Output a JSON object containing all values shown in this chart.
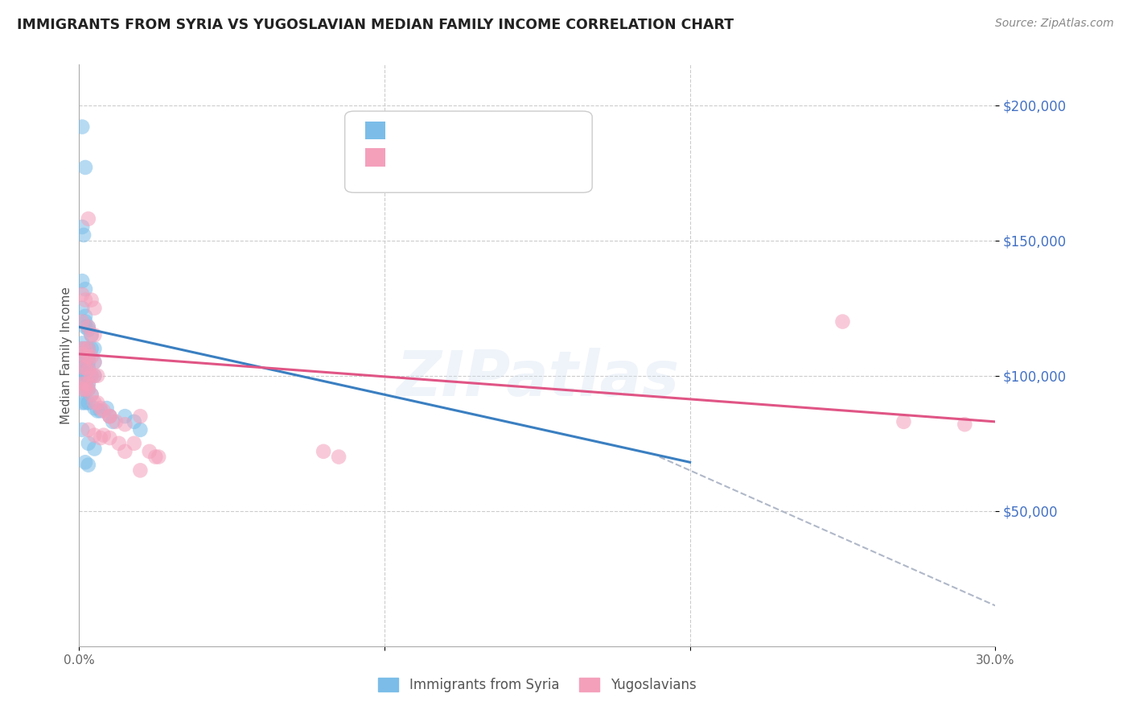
{
  "title": "IMMIGRANTS FROM SYRIA VS YUGOSLAVIAN MEDIAN FAMILY INCOME CORRELATION CHART",
  "source": "Source: ZipAtlas.com",
  "ylabel": "Median Family Income",
  "ytick_labels": [
    "$50,000",
    "$100,000",
    "$150,000",
    "$200,000"
  ],
  "ytick_values": [
    50000,
    100000,
    150000,
    200000
  ],
  "ylim": [
    0,
    215000
  ],
  "xlim": [
    0.0,
    0.3
  ],
  "legend_label_blue": "Immigrants from Syria",
  "legend_label_pink": "Yugoslavians",
  "watermark": "ZIPatlas",
  "blue_color": "#7bbde8",
  "pink_color": "#f4a0bb",
  "blue_line_color": "#3a7fc1",
  "pink_line_color": "#e05585",
  "dashed_line_color": "#b0b8c8",
  "blue_scatter": [
    [
      0.001,
      192000
    ],
    [
      0.002,
      177000
    ],
    [
      0.001,
      155000
    ],
    [
      0.0015,
      152000
    ],
    [
      0.001,
      135000
    ],
    [
      0.002,
      132000
    ],
    [
      0.001,
      125000
    ],
    [
      0.002,
      122000
    ],
    [
      0.002,
      120000
    ],
    [
      0.003,
      118000
    ],
    [
      0.002,
      118000
    ],
    [
      0.003,
      117000
    ],
    [
      0.004,
      115000
    ],
    [
      0.001,
      112000
    ],
    [
      0.001,
      110000
    ],
    [
      0.002,
      110000
    ],
    [
      0.003,
      110000
    ],
    [
      0.004,
      110000
    ],
    [
      0.005,
      110000
    ],
    [
      0.001,
      108000
    ],
    [
      0.002,
      108000
    ],
    [
      0.003,
      107000
    ],
    [
      0.001,
      106000
    ],
    [
      0.002,
      105000
    ],
    [
      0.003,
      105000
    ],
    [
      0.005,
      105000
    ],
    [
      0.001,
      103000
    ],
    [
      0.002,
      103000
    ],
    [
      0.003,
      103000
    ],
    [
      0.001,
      101000
    ],
    [
      0.002,
      100000
    ],
    [
      0.003,
      100000
    ],
    [
      0.004,
      100000
    ],
    [
      0.005,
      100000
    ],
    [
      0.001,
      98000
    ],
    [
      0.002,
      97000
    ],
    [
      0.003,
      97000
    ],
    [
      0.001,
      95000
    ],
    [
      0.002,
      95000
    ],
    [
      0.003,
      95000
    ],
    [
      0.004,
      93000
    ],
    [
      0.001,
      90000
    ],
    [
      0.002,
      90000
    ],
    [
      0.003,
      90000
    ],
    [
      0.005,
      88000
    ],
    [
      0.006,
      87000
    ],
    [
      0.007,
      87000
    ],
    [
      0.009,
      88000
    ],
    [
      0.001,
      80000
    ],
    [
      0.003,
      75000
    ],
    [
      0.005,
      73000
    ],
    [
      0.002,
      68000
    ],
    [
      0.003,
      67000
    ],
    [
      0.01,
      85000
    ],
    [
      0.011,
      83000
    ],
    [
      0.015,
      85000
    ],
    [
      0.018,
      83000
    ],
    [
      0.02,
      80000
    ]
  ],
  "pink_scatter": [
    [
      0.003,
      158000
    ],
    [
      0.001,
      130000
    ],
    [
      0.002,
      128000
    ],
    [
      0.004,
      128000
    ],
    [
      0.005,
      125000
    ],
    [
      0.001,
      120000
    ],
    [
      0.003,
      118000
    ],
    [
      0.004,
      115000
    ],
    [
      0.005,
      115000
    ],
    [
      0.001,
      110000
    ],
    [
      0.002,
      110000
    ],
    [
      0.003,
      110000
    ],
    [
      0.001,
      108000
    ],
    [
      0.002,
      107000
    ],
    [
      0.003,
      107000
    ],
    [
      0.004,
      107000
    ],
    [
      0.005,
      105000
    ],
    [
      0.001,
      103000
    ],
    [
      0.002,
      103000
    ],
    [
      0.003,
      102000
    ],
    [
      0.004,
      100000
    ],
    [
      0.005,
      100000
    ],
    [
      0.006,
      100000
    ],
    [
      0.001,
      97000
    ],
    [
      0.002,
      97000
    ],
    [
      0.003,
      97000
    ],
    [
      0.001,
      95000
    ],
    [
      0.002,
      95000
    ],
    [
      0.003,
      95000
    ],
    [
      0.004,
      93000
    ],
    [
      0.005,
      90000
    ],
    [
      0.006,
      90000
    ],
    [
      0.007,
      88000
    ],
    [
      0.008,
      87000
    ],
    [
      0.01,
      85000
    ],
    [
      0.01,
      85000
    ],
    [
      0.012,
      83000
    ],
    [
      0.015,
      82000
    ],
    [
      0.003,
      80000
    ],
    [
      0.005,
      78000
    ],
    [
      0.007,
      77000
    ],
    [
      0.008,
      78000
    ],
    [
      0.01,
      77000
    ],
    [
      0.013,
      75000
    ],
    [
      0.015,
      72000
    ],
    [
      0.018,
      75000
    ],
    [
      0.02,
      85000
    ],
    [
      0.023,
      72000
    ],
    [
      0.025,
      70000
    ],
    [
      0.02,
      65000
    ],
    [
      0.026,
      70000
    ],
    [
      0.25,
      120000
    ],
    [
      0.27,
      83000
    ],
    [
      0.29,
      82000
    ],
    [
      0.08,
      72000
    ],
    [
      0.085,
      70000
    ]
  ],
  "blue_line": {
    "x0": 0.0,
    "y0": 118000,
    "x1": 0.2,
    "y1": 68000
  },
  "pink_line": {
    "x0": 0.0,
    "y0": 108000,
    "x1": 0.3,
    "y1": 83000
  },
  "dashed_line": {
    "x0": 0.19,
    "y0": 70000,
    "x1": 0.3,
    "y1": 15000
  }
}
